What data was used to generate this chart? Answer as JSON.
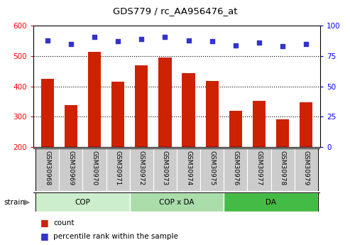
{
  "title": "GDS779 / rc_AA956476_at",
  "samples": [
    "GSM30968",
    "GSM30969",
    "GSM30970",
    "GSM30971",
    "GSM30972",
    "GSM30973",
    "GSM30974",
    "GSM30975",
    "GSM30976",
    "GSM30977",
    "GSM30978",
    "GSM30979"
  ],
  "counts": [
    425,
    338,
    515,
    415,
    470,
    495,
    443,
    418,
    320,
    353,
    292,
    348
  ],
  "percentiles": [
    88,
    85,
    91,
    87,
    89,
    91,
    88,
    87,
    84,
    86,
    83,
    85
  ],
  "ylim_left": [
    200,
    600
  ],
  "ylim_right": [
    0,
    100
  ],
  "yticks_left": [
    200,
    300,
    400,
    500,
    600
  ],
  "yticks_right": [
    0,
    25,
    50,
    75,
    100
  ],
  "bar_color": "#CC2200",
  "dot_color": "#3333CC",
  "groups": [
    {
      "label": "COP",
      "start": 0,
      "end": 3,
      "color": "#CCEECC"
    },
    {
      "label": "COP x DA",
      "start": 4,
      "end": 7,
      "color": "#AADDAA"
    },
    {
      "label": "DA",
      "start": 8,
      "end": 11,
      "color": "#44BB44"
    }
  ],
  "legend_count_label": "count",
  "legend_pct_label": "percentile rank within the sample",
  "tick_bg_color": "#CCCCCC",
  "grid_yticks": [
    300,
    400,
    500
  ]
}
